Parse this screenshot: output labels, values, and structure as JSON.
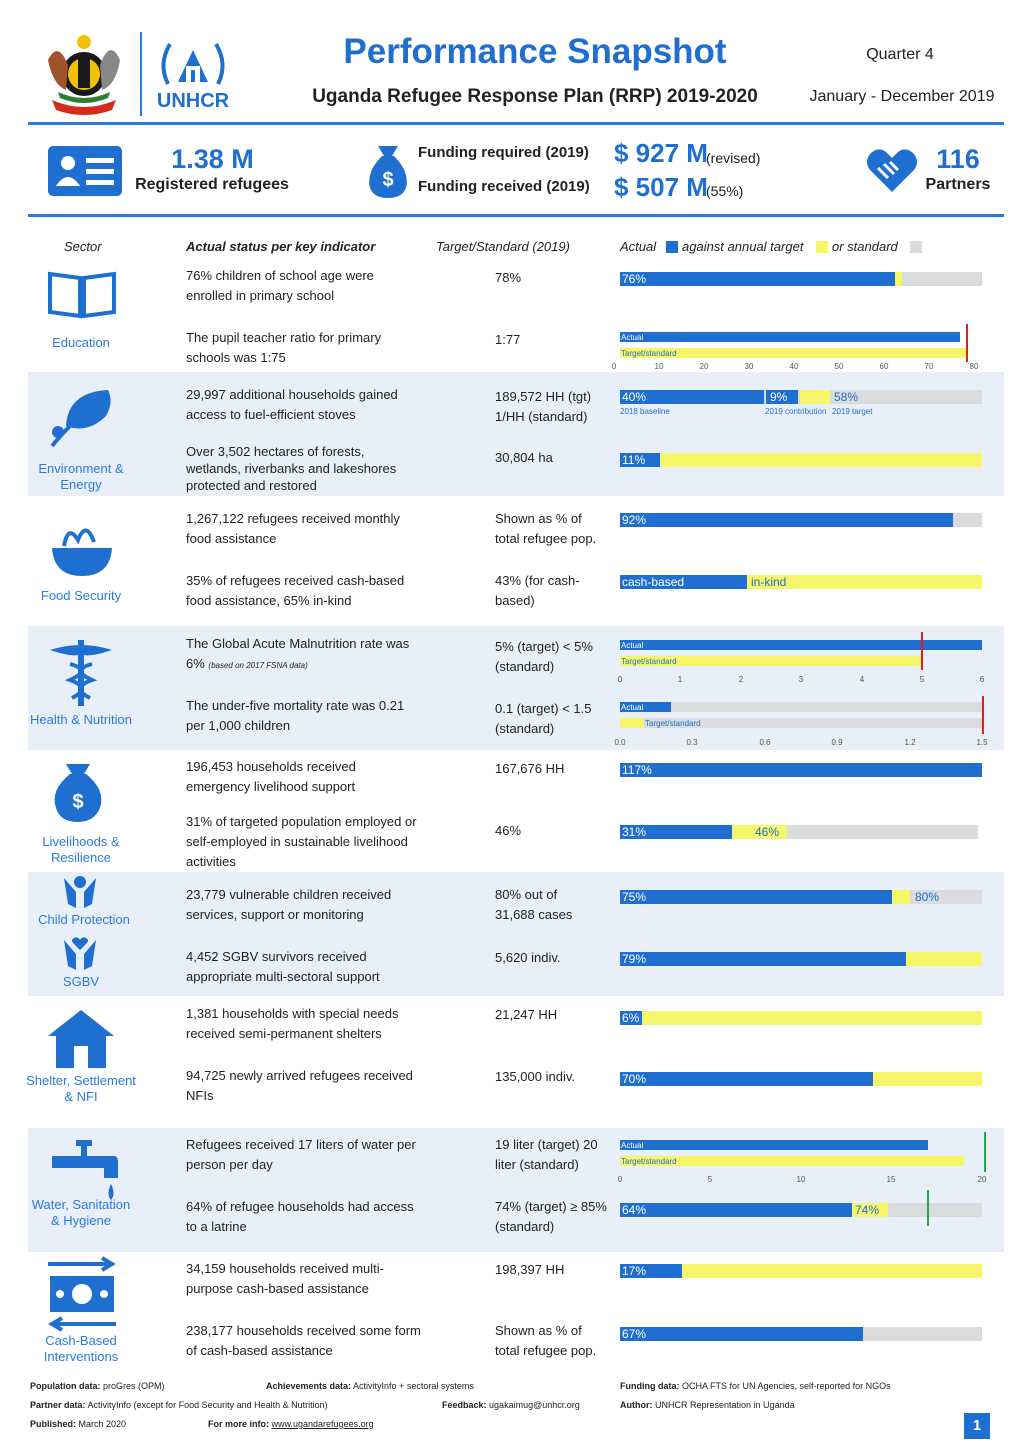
{
  "header": {
    "title": "Performance Snapshot",
    "subtitle": "Uganda Refugee Response Plan (RRP) 2019-2020",
    "quarter": "Quarter 4",
    "period": "January - December 2019",
    "unhcr_logo_text": "UNHCR"
  },
  "stats": {
    "refugees_value": "1.38 M",
    "refugees_label": "Registered refugees",
    "funding_required_label": "Funding required (2019)",
    "funding_required_value": "$ 927 M",
    "funding_required_note": "(revised)",
    "funding_received_label": "Funding received (2019)",
    "funding_received_value": "$ 507 M",
    "funding_received_note": "(55%)",
    "partners_value": "116",
    "partners_label": "Partners"
  },
  "columns": {
    "sector": "Sector",
    "indicator": "Actual status per key indicator",
    "target": "Target/Standard (2019)",
    "actual": "Actual",
    "legend_target": "against annual target",
    "legend_standard": "or standard"
  },
  "sectors": {
    "education": "Education",
    "environment": "Environment & Energy",
    "food": "Food Security",
    "health": "Health & Nutrition",
    "livelihoods": "Livelihoods & Resilience",
    "child_protection": "Child Protection",
    "sgbv": "SGBV",
    "shelter": "Shelter, Settlement & NFI",
    "wash": "Water, Sanitation & Hygiene",
    "cbi": "Cash-Based Interventions"
  },
  "rows": [
    {
      "indicator": "76% children of school age were enrolled in primary school",
      "target": "78%",
      "bar_label": "76%",
      "actual_pct": 76,
      "target_pct": 78
    },
    {
      "indicator": "The pupil teacher ratio for primary schools was 1:75",
      "target": "1:77",
      "actual_label": "Actual",
      "target_label": "Target/standard",
      "actual_value": 75,
      "target_value": 77,
      "axis": [
        "0",
        "10",
        "20",
        "30",
        "40",
        "50",
        "60",
        "70",
        "80"
      ]
    },
    {
      "indicator": "29,997 additional households gained access to fuel-efficient stoves",
      "target": "189,572 HH (tgt) 1/HH (standard)",
      "labels": [
        "40%",
        "9%",
        "58%"
      ],
      "sublabels": [
        "2018 baseline",
        "2019 contribution",
        "2019 target"
      ],
      "values": [
        40,
        9,
        58
      ]
    },
    {
      "indicator": "Over 3,502 hectares of forests, wetlands, riverbanks and lakeshores protected and restored",
      "target": "30,804 ha",
      "bar_label": "11%",
      "actual_pct": 11
    },
    {
      "indicator": "1,267,122 refugees received monthly food assistance",
      "target": "Shown as % of total refugee pop.",
      "bar_label": "92%",
      "actual_pct": 92
    },
    {
      "indicator": "35% of refugees received cash-based food assistance, 65% in-kind",
      "target": "43% (for cash-based)",
      "labels": [
        "cash-based",
        "in-kind"
      ],
      "values": [
        35,
        65
      ]
    },
    {
      "indicator": "The Global Acute Malnutrition rate was 6%",
      "indicator_note": "(based on 2017 FSNA data)",
      "target": "5% (target) < 5% (standard)",
      "actual_label": "Actual",
      "target_label": "Target/standard",
      "actual_value": 6,
      "target_value": 5,
      "axis": [
        "0",
        "1",
        "2",
        "3",
        "4",
        "5",
        "6"
      ]
    },
    {
      "indicator": "The under-five mortality rate was 0.21 per 1,000 children",
      "target": "0.1 (target) < 1.5 (standard)",
      "actual_label": "Actual",
      "target_label": "Target/standard",
      "actual_value": 0.21,
      "target_value": 0.1,
      "standard_value": 1.5,
      "axis": [
        "0.0",
        "0.3",
        "0.6",
        "0.9",
        "1.2",
        "1.5"
      ]
    },
    {
      "indicator": "196,453 households received emergency livelihood support",
      "target": "167,676 HH",
      "bar_label": "117%",
      "actual_pct": 117
    },
    {
      "indicator": "31% of targeted population employed or self-employed in sustainable livelihood activities",
      "target": "46%",
      "bar_label": "31%",
      "target_bar_label": "46%",
      "actual_pct": 31,
      "target_pct": 46
    },
    {
      "indicator": "23,779 vulnerable children received services, support or monitoring",
      "target": "80% out of 31,688 cases",
      "bar_label": "75%",
      "target_bar_label": "80%",
      "actual_pct": 75,
      "target_pct": 80
    },
    {
      "indicator": "4,452 SGBV survivors received appropriate multi-sectoral support",
      "target": "5,620 indiv.",
      "bar_label": "79%",
      "actual_pct": 79
    },
    {
      "indicator": "1,381 households with special needs received semi-permanent shelters",
      "target": "21,247 HH",
      "bar_label": "6%",
      "actual_pct": 6
    },
    {
      "indicator": "94,725 newly arrived refugees received NFIs",
      "target": "135,000 indiv.",
      "bar_label": "70%",
      "actual_pct": 70
    },
    {
      "indicator": "Refugees received 17 liters of water per person per day",
      "target": "19 liter (target) 20 liter (standard)",
      "actual_label": "Actual",
      "target_label": "Target/standard",
      "actual_value": 17,
      "target_value": 19,
      "standard_value": 20,
      "axis": [
        "0",
        "5",
        "10",
        "15",
        "20"
      ]
    },
    {
      "indicator": "64% of refugee households had access to a latrine",
      "target": "74% (target) ≥ 85% (standard)",
      "bar_label": "64%",
      "target_bar_label": "74%",
      "actual_pct": 64,
      "target_pct": 74,
      "standard_pct": 85
    },
    {
      "indicator": "34,159 households received multi-purpose cash-based assistance",
      "target": "198,397 HH",
      "bar_label": "17%",
      "actual_pct": 17
    },
    {
      "indicator": "238,177 households received some form of cash-based assistance",
      "target": "Shown as % of total refugee pop.",
      "bar_label": "67%",
      "actual_pct": 67
    }
  ],
  "footer": {
    "pop_label": "Population data:",
    "pop_value": "proGres (OPM)",
    "ach_label": "Achievements data:",
    "ach_value": "ActivityInfo + sectoral systems",
    "fund_label": "Funding data:",
    "fund_value": "OCHA FTS for UN Agencies, self-reported for NGOs",
    "partner_label": "Partner data:",
    "partner_value": "ActivityInfo (except for Food Security and Health & Nutrition)",
    "feedback_label": "Feedback:",
    "feedback_value": "ugakaimug@unhcr.org",
    "author_label": "Author:",
    "author_value": "UNHCR Representation in Uganda",
    "pub_label": "Published:",
    "pub_value": "March 2020",
    "info_label": "For more info:",
    "info_value": "www.ugandarefugees.org",
    "page": "1"
  },
  "colors": {
    "blue": "#1f6fd0",
    "yellow": "#f6f66a",
    "grey": "#d9dbdd",
    "band": "#e8eff9",
    "red": "#e02020",
    "green": "#2aa845"
  }
}
